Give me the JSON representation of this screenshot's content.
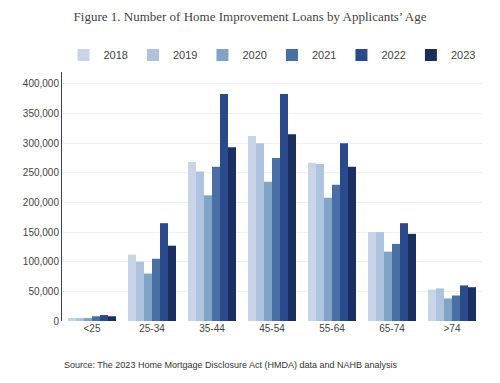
{
  "chart_data": {
    "type": "bar",
    "title": "Figure 1. Number of Home Improvement Loans by Applicants’ Age",
    "annotations": [
      "Source: The 2023 Home Mortgage Disclosure Act (HMDA) data and NAHB analysis"
    ],
    "categories": [
      "<25",
      "25-34",
      "35-44",
      "45-54",
      "55-64",
      "65-74",
      ">74"
    ],
    "series": [
      {
        "name": "2018",
        "color": "#c8d4e8",
        "values": [
          5000,
          112000,
          268000,
          312000,
          267000,
          150000,
          53000
        ]
      },
      {
        "name": "2019",
        "color": "#adc3de",
        "values": [
          5000,
          100000,
          252000,
          300000,
          265000,
          150000,
          55000
        ]
      },
      {
        "name": "2020",
        "color": "#7fa4c8",
        "values": [
          5000,
          80000,
          212000,
          235000,
          208000,
          117000,
          38000
        ]
      },
      {
        "name": "2021",
        "color": "#4a6fa5",
        "values": [
          8000,
          105000,
          260000,
          275000,
          230000,
          130000,
          43000
        ]
      },
      {
        "name": "2022",
        "color": "#2b4a8c",
        "values": [
          10000,
          165000,
          383000,
          383000,
          300000,
          165000,
          60000
        ]
      },
      {
        "name": "2023",
        "color": "#1a2f60",
        "values": [
          8000,
          127000,
          293000,
          315000,
          260000,
          147000,
          57000
        ]
      }
    ],
    "ylim": [
      0,
      420000
    ],
    "yticks": [
      0,
      {
        "value": 50000,
        "label": "50,000"
      },
      {
        "value": 100000,
        "label": "100,000"
      },
      {
        "value": 150000,
        "label": "150,000"
      },
      {
        "value": 200000,
        "label": "200,000"
      },
      {
        "value": 250000,
        "label": "250,000"
      },
      {
        "value": 300000,
        "label": "300,000"
      },
      {
        "value": 350000,
        "label": "350,000"
      },
      {
        "value": 400000,
        "label": "400,000"
      }
    ],
    "grid": true,
    "legend": "top"
  }
}
